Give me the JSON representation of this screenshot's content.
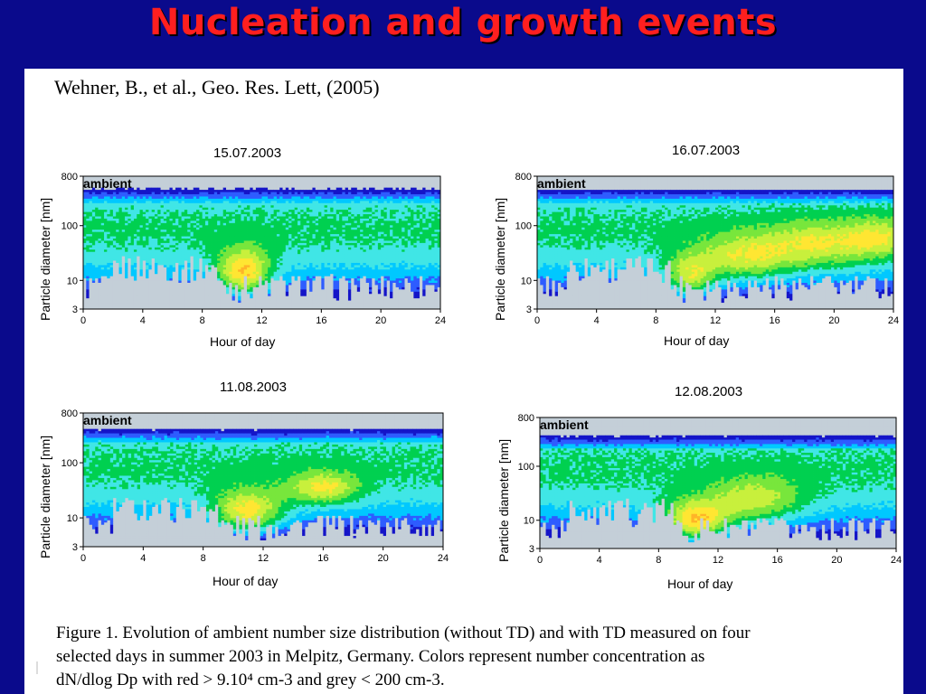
{
  "slide": {
    "title": "Nucleation and growth events",
    "citation": "Wehner, B., et al., Geo.  Res. Lett, (2005)",
    "caption_lines": [
      "Figure 1.  Evolution of ambient number size distribution (without TD) and with TD measured on four",
      "selected days in summer 2003 in Melpitz, Germany. Colors represent number concentration as",
      "dN/dlog Dp with red > 9.10⁴ cm-3 and grey < 200 cm-3."
    ]
  },
  "colors": {
    "background": "#0a0a8c",
    "title": "#ff1f1f",
    "grey_low": "#c4cfd8",
    "contour_scale": [
      "#1515c8",
      "#2e5cff",
      "#00c8ff",
      "#40e6e6",
      "#00d050",
      "#78e63c",
      "#c8f03c",
      "#ffe632",
      "#ffb428",
      "#ff781e",
      "#f03c1e",
      "#e60000"
    ]
  },
  "chart_data": [
    {
      "type": "heatmap",
      "title": "15.07.2003",
      "annotation": "ambient",
      "xlabel": "Hour of day",
      "ylabel": "Particle diameter [nm]",
      "xlim": [
        0,
        24
      ],
      "ylim": [
        3,
        800
      ],
      "yscale": "log",
      "xticks": [
        "0",
        "4",
        "8",
        "12",
        "16",
        "20",
        "24"
      ],
      "yticks": [
        {
          "value": 3,
          "label": "3"
        },
        {
          "value": 10,
          "label": "10"
        },
        {
          "value": 100,
          "label": "100"
        },
        {
          "value": 800,
          "label": "800"
        }
      ],
      "events": [
        {
          "x": 10.8,
          "y": 13,
          "sx": 1.3,
          "sy": 0.32,
          "a": 5.5
        }
      ],
      "grey_top": 480,
      "grey_bottom": 4
    },
    {
      "type": "heatmap",
      "title": "16.07.2003",
      "annotation": "ambient",
      "xlabel": "Hour of day",
      "ylabel": "Particle diameter [nm]",
      "xlim": [
        0,
        24
      ],
      "ylim": [
        3,
        800
      ],
      "yscale": "log",
      "xticks": [
        "0",
        "4",
        "8",
        "12",
        "16",
        "20",
        "24"
      ],
      "yticks": [
        {
          "value": 3,
          "label": "3"
        },
        {
          "value": 10,
          "label": "10"
        },
        {
          "value": 100,
          "label": "100"
        },
        {
          "value": 800,
          "label": "800"
        }
      ],
      "events": [
        {
          "x": 10.3,
          "y": 11,
          "sx": 1.2,
          "sy": 0.3,
          "a": 4.2
        },
        {
          "x": 14,
          "y": 25,
          "sx": 2.2,
          "sy": 0.3,
          "a": 3.4
        },
        {
          "x": 19,
          "y": 45,
          "sx": 2.5,
          "sy": 0.3,
          "a": 3.0
        },
        {
          "x": 23,
          "y": 60,
          "sx": 1.5,
          "sy": 0.25,
          "a": 2.6
        }
      ],
      "grey_top": 470,
      "grey_bottom": 4
    },
    {
      "type": "heatmap",
      "title": "11.08.2003",
      "annotation": "ambient",
      "xlabel": "Hour of day",
      "ylabel": "Particle diameter [nm]",
      "xlim": [
        0,
        24
      ],
      "ylim": [
        3,
        800
      ],
      "yscale": "log",
      "xticks": [
        "0",
        "4",
        "8",
        "12",
        "16",
        "20",
        "24"
      ],
      "yticks": [
        {
          "value": 3,
          "label": "3"
        },
        {
          "value": 10,
          "label": "10"
        },
        {
          "value": 100,
          "label": "100"
        },
        {
          "value": 800,
          "label": "800"
        }
      ],
      "events": [
        {
          "x": 11,
          "y": 12,
          "sx": 1.7,
          "sy": 0.3,
          "a": 5.0
        },
        {
          "x": 16,
          "y": 35,
          "sx": 1.6,
          "sy": 0.2,
          "a": 3.6
        }
      ],
      "grey_top": 420,
      "grey_bottom": 3.5
    },
    {
      "type": "heatmap",
      "title": "12.08.2003",
      "annotation": "ambient",
      "xlabel": "Hour of day",
      "ylabel": "Particle diameter [nm]",
      "xlim": [
        0,
        24
      ],
      "ylim": [
        3,
        800
      ],
      "yscale": "log",
      "xticks": [
        "0",
        "4",
        "8",
        "12",
        "16",
        "20",
        "24"
      ],
      "yticks": [
        {
          "value": 3,
          "label": "3"
        },
        {
          "value": 10,
          "label": "10"
        },
        {
          "value": 100,
          "label": "100"
        },
        {
          "value": 800,
          "label": "800"
        }
      ],
      "events": [
        {
          "x": 10.5,
          "y": 9,
          "sx": 1.6,
          "sy": 0.28,
          "a": 6.0
        },
        {
          "x": 14.5,
          "y": 22,
          "sx": 2.2,
          "sy": 0.3,
          "a": 3.3
        }
      ],
      "grey_top": 380,
      "grey_bottom": 3.5
    }
  ]
}
